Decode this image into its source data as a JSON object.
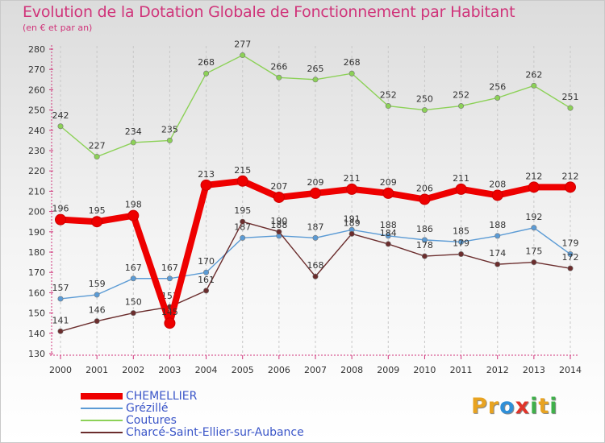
{
  "title": "Evolution de la Dotation Globale de Fonctionnement par Habitant",
  "subtitle": "(en € et par an)",
  "logo": {
    "text": "Proxiti",
    "colors": [
      "#e8a321",
      "#2f8fd8",
      "#e0342a",
      "#3fb04a"
    ]
  },
  "chart_data": {
    "type": "line",
    "x": [
      "2000",
      "2001",
      "2002",
      "2003",
      "2004",
      "2005",
      "2006",
      "2007",
      "2008",
      "2009",
      "2010",
      "2011",
      "2012",
      "2013",
      "2014"
    ],
    "ylim": [
      130,
      280
    ],
    "yticks": [
      130,
      140,
      150,
      160,
      170,
      180,
      190,
      200,
      210,
      220,
      230,
      240,
      250,
      260,
      270,
      280
    ],
    "grid": "vertical",
    "legend_position": "bottom-left",
    "series": [
      {
        "name": "CHEMELLIER",
        "color": "#ee0000",
        "values": [
          196,
          195,
          198,
          145,
          213,
          215,
          207,
          209,
          211,
          209,
          206,
          211,
          208,
          212,
          212
        ]
      },
      {
        "name": "Grézillé",
        "color": "#5b9bd5",
        "values": [
          157,
          159,
          167,
          167,
          170,
          187,
          188,
          187,
          191,
          188,
          186,
          185,
          188,
          192,
          179
        ]
      },
      {
        "name": "Coutures",
        "color": "#8cd157",
        "values": [
          242,
          227,
          234,
          235,
          268,
          277,
          266,
          265,
          268,
          252,
          250,
          252,
          256,
          262,
          251
        ]
      },
      {
        "name": "Charcé-Saint-Ellier-sur-Aubance",
        "color": "#6b2d2d",
        "values": [
          141,
          146,
          150,
          153,
          161,
          195,
          190,
          168,
          189,
          184,
          178,
          179,
          174,
          175,
          172
        ]
      }
    ]
  }
}
